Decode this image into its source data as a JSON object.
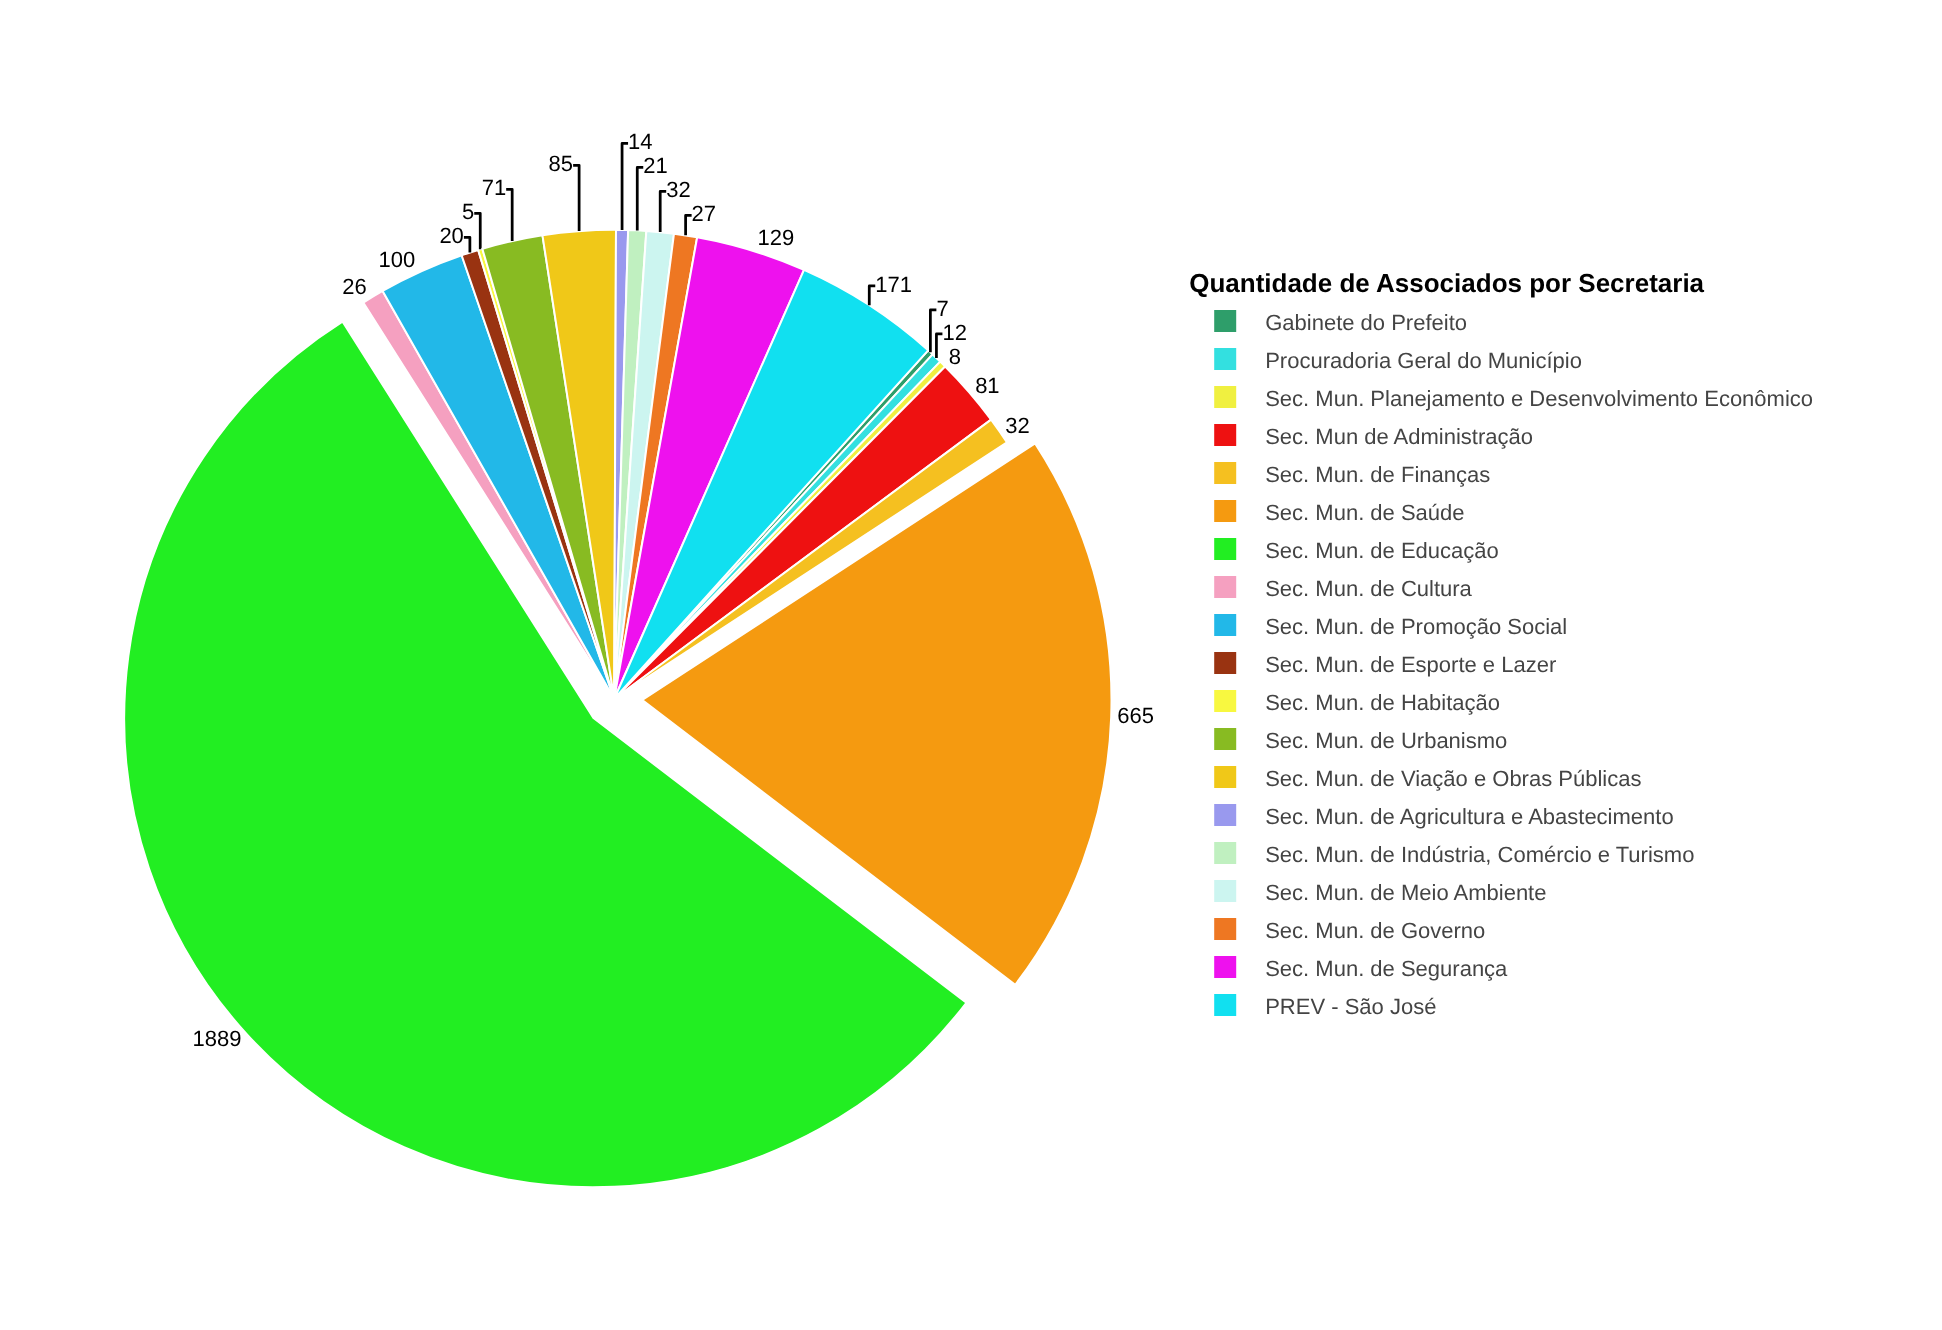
{
  "chart_data": {
    "type": "pie",
    "legend_title": "Quantidade de Associados por Secretaria",
    "legend": "right",
    "data_labels": true,
    "categories": [
      "Gabinete do Prefeito",
      "Procuradoria Geral do Município",
      "Sec. Mun. Planejamento e Desenvolvimento Econômico",
      "Sec. Mun de Administração",
      "Sec. Mun. de Finanças",
      "Sec. Mun. de Saúde",
      "Sec. Mun. de Educação",
      "Sec. Mun. de Cultura",
      "Sec. Mun. de Promoção Social",
      "Sec. Mun. de Esporte e Lazer",
      "Sec. Mun. de Habitação",
      "Sec. Mun. de Urbanismo",
      "Sec. Mun. de Viação e Obras Públicas",
      "Sec. Mun. de Agricultura e Abastecimento",
      "Sec. Mun. de Indústria, Comércio e Turismo",
      "Sec. Mun. de Meio Ambiente",
      "Sec. Mun. de Governo",
      "Sec. Mun. de Segurança",
      "PREV - São José"
    ],
    "values": [
      7,
      12,
      8,
      81,
      32,
      665,
      1889,
      26,
      100,
      20,
      5,
      71,
      85,
      14,
      21,
      32,
      27,
      129,
      171
    ],
    "colors": [
      "#2e9e6a",
      "#33e0e0",
      "#f0f040",
      "#ee1111",
      "#f5c020",
      "#f59a10",
      "#22ee22",
      "#f5a0c0",
      "#22b8e8",
      "#993311",
      "#f8f840",
      "#88bb22",
      "#f0c818",
      "#9999ee",
      "#c0f0c0",
      "#ccf5f0",
      "#ee7722",
      "#ee11ee",
      "#11e0f0"
    ]
  }
}
